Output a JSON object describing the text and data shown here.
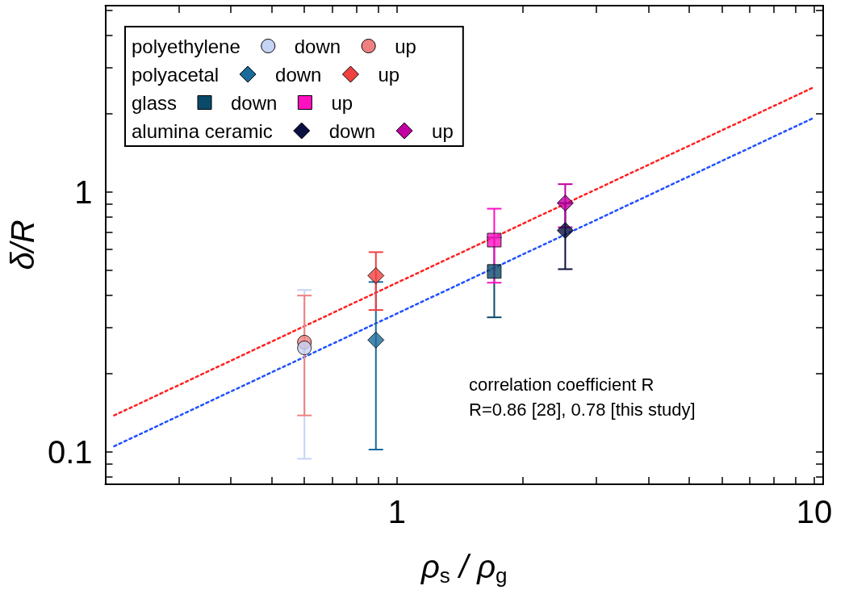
{
  "chart_data": {
    "type": "scatter",
    "xlabel": "ρ$_{s}$ / ρ$_{g}$",
    "ylabel": "δ/R",
    "log": "xy",
    "grid": false,
    "legend": "top left",
    "xlim": [
      0.2,
      10.5
    ],
    "ylim": [
      0.075,
      5.2
    ],
    "xticks": [
      {
        "value": 0.2,
        "label": null
      },
      {
        "value": 0.3,
        "label": null
      },
      {
        "value": 0.4,
        "label": null
      },
      {
        "value": 0.5,
        "label": null
      },
      {
        "value": 0.6,
        "label": null
      },
      {
        "value": 0.7,
        "label": null
      },
      {
        "value": 0.8,
        "label": null
      },
      {
        "value": 0.9,
        "label": null
      },
      1,
      {
        "value": 2,
        "label": null
      },
      {
        "value": 3,
        "label": null
      },
      {
        "value": 4,
        "label": null
      },
      {
        "value": 5,
        "label": null
      },
      {
        "value": 6,
        "label": null
      },
      {
        "value": 7,
        "label": null
      },
      {
        "value": 8,
        "label": null
      },
      {
        "value": 9,
        "label": null
      },
      10
    ],
    "yticks": [
      {
        "value": 0.08,
        "label": null
      },
      {
        "value": 0.09,
        "label": null
      },
      0.1,
      {
        "value": 0.2,
        "label": null
      },
      {
        "value": 0.3,
        "label": null
      },
      {
        "value": 0.4,
        "label": null
      },
      {
        "value": 0.5,
        "label": null
      },
      {
        "value": 0.6,
        "label": null
      },
      {
        "value": 0.7,
        "label": null
      },
      {
        "value": 0.8,
        "label": null
      },
      {
        "value": 0.9,
        "label": null
      },
      1,
      {
        "value": 2,
        "label": null
      },
      {
        "value": 3,
        "label": null
      },
      {
        "value": 4,
        "label": null
      },
      {
        "value": 5,
        "label": null
      }
    ],
    "annotations": [
      "polyethylene",
      "polyacetal",
      "glass",
      "alumina ceramic",
      "correlation coefficient R",
      "R=0.86 [28], 0.78 [this study]"
    ],
    "series": [
      {
        "type": "line",
        "color": "#ff2020",
        "line_style": "dotted",
        "marker": "none",
        "x": [
          0.21,
          10
        ],
        "values": [
          0.138,
          2.53
        ]
      },
      {
        "type": "line",
        "color": "#2050ff",
        "line_style": "dotted",
        "marker": "none",
        "x": [
          0.21,
          10
        ],
        "values": [
          0.105,
          1.93
        ]
      },
      {
        "name": "down",
        "color": "#c5d3f5",
        "marker": "circle",
        "x": [
          0.6
        ],
        "values": [
          0.251
        ],
        "errors": [
          [
            0.094,
            0.419
          ]
        ]
      },
      {
        "name": "up",
        "color": "#f08080",
        "marker": "circle",
        "x": [
          0.6
        ],
        "values": [
          0.264
        ],
        "errors": [
          [
            0.138,
            0.399
          ]
        ]
      },
      {
        "name": "down",
        "color": "#1a6a9a",
        "marker": "diamond",
        "x": [
          0.89
        ],
        "values": [
          0.269
        ],
        "errors": [
          [
            0.102,
            0.45
          ]
        ]
      },
      {
        "name": "up",
        "color": "#f04040",
        "marker": "diamond",
        "x": [
          0.89
        ],
        "values": [
          0.476
        ],
        "errors": [
          [
            0.351,
            0.586
          ]
        ]
      },
      {
        "name": "down",
        "color": "#0a4a6a",
        "marker": "square",
        "x": [
          1.71
        ],
        "values": [
          0.494
        ],
        "errors": [
          [
            0.329,
            0.667
          ]
        ]
      },
      {
        "name": "up",
        "color": "#ff10c0",
        "marker": "square",
        "x": [
          1.71
        ],
        "values": [
          0.652
        ],
        "errors": [
          [
            0.447,
            0.861
          ]
        ]
      },
      {
        "name": "down",
        "color": "#0a1040",
        "marker": "diamond",
        "x": [
          2.53
        ],
        "values": [
          0.71
        ],
        "errors": [
          [
            0.504,
            0.905
          ]
        ]
      },
      {
        "name": "up",
        "color": "#c000a0",
        "marker": "diamond",
        "x": [
          2.53
        ],
        "values": [
          0.905
        ],
        "errors": [
          [
            0.73,
            1.07
          ]
        ]
      }
    ]
  }
}
